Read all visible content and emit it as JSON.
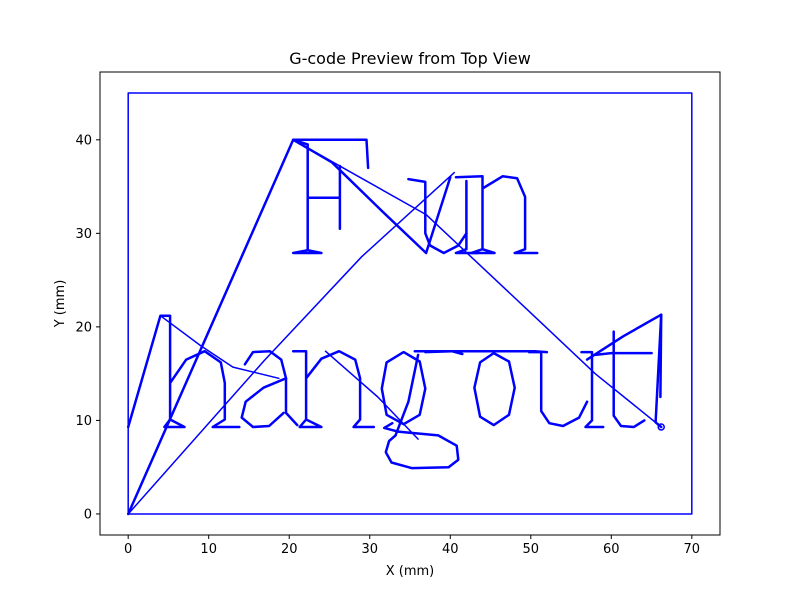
{
  "chart_data": {
    "type": "line",
    "title": "G-code Preview from Top View",
    "xlabel": "X (mm)",
    "ylabel": "Y (mm)",
    "xlim": [
      -3.5,
      73.5
    ],
    "ylim": [
      -2.25,
      47.25
    ],
    "xticks": [
      0,
      10,
      20,
      30,
      40,
      50,
      60,
      70
    ],
    "yticks": [
      0,
      10,
      20,
      30,
      40
    ],
    "grid": false,
    "legend": "none",
    "colors": {
      "path": "#0000ff",
      "axes": "#000000",
      "background": "#ffffff"
    },
    "series": [
      {
        "values": [
          [
            0,
            0
          ],
          [
            0,
            45
          ],
          [
            70,
            45
          ],
          [
            70,
            0
          ],
          [
            0,
            0
          ]
        ]
      },
      {
        "values": [
          [
            0,
            0
          ],
          [
            20.5,
            40
          ],
          [
            29.6,
            40
          ],
          [
            29.8,
            37
          ],
          [
            29.6,
            40
          ],
          [
            20.5,
            40
          ],
          [
            22.3,
            39.5
          ],
          [
            22.3,
            28.2
          ],
          [
            20.5,
            27.9
          ],
          [
            24,
            27.9
          ],
          [
            22.3,
            28.2
          ],
          [
            22.3,
            39.5
          ],
          [
            22.3,
            33.8
          ],
          [
            26.3,
            33.8
          ],
          [
            26.3,
            37.2
          ],
          [
            26.3,
            30.5
          ],
          [
            26.3,
            33.8
          ],
          [
            22.3,
            33.8
          ],
          [
            22.3,
            39.5
          ],
          [
            20.5,
            40
          ]
        ]
      },
      {
        "values": [
          [
            20.5,
            40
          ],
          [
            25.3,
            37.6
          ],
          [
            31.5,
            32.4
          ],
          [
            37,
            27.9
          ],
          [
            40,
            36
          ],
          [
            37,
            27.9
          ]
        ]
      },
      {
        "values": [
          [
            34.8,
            35.8
          ],
          [
            36.9,
            35.5
          ],
          [
            36.9,
            30
          ],
          [
            37.5,
            28.7
          ],
          [
            39.2,
            27.9
          ],
          [
            41,
            28.7
          ],
          [
            42,
            30
          ]
        ]
      },
      {
        "values": [
          [
            42,
            35.6
          ],
          [
            42,
            28.3
          ],
          [
            40.7,
            27.9
          ],
          [
            43.4,
            27.9
          ]
        ]
      },
      {
        "values": [
          [
            40.7,
            36
          ],
          [
            44,
            36.1
          ],
          [
            44,
            28.3
          ],
          [
            42.6,
            27.9
          ],
          [
            45.5,
            27.9
          ],
          [
            44,
            28.3
          ],
          [
            44,
            34.8
          ],
          [
            46.5,
            36.1
          ],
          [
            48.3,
            35.9
          ],
          [
            49.3,
            33.9
          ],
          [
            49.3,
            28.3
          ],
          [
            48,
            27.9
          ],
          [
            50.8,
            27.9
          ]
        ]
      },
      {
        "values": [
          [
            20.5,
            40
          ],
          [
            37,
            32
          ],
          [
            50,
            21.5
          ],
          [
            58,
            15
          ],
          [
            66.2,
            9.3
          ]
        ]
      },
      {
        "values": [
          [
            0,
            0
          ],
          [
            17,
            16.5
          ],
          [
            29,
            27.5
          ],
          [
            40.5,
            36.5
          ]
        ]
      },
      {
        "values": [
          [
            0,
            9.3
          ],
          [
            4,
            21.2
          ],
          [
            5.2,
            21.2
          ],
          [
            5.2,
            10.1
          ],
          [
            4.5,
            9.3
          ],
          [
            7,
            9.3
          ],
          [
            5.2,
            10.1
          ],
          [
            5.2,
            14
          ],
          [
            7.2,
            16.5
          ],
          [
            9.5,
            17.4
          ],
          [
            11.5,
            16.2
          ],
          [
            12,
            14
          ],
          [
            12,
            10.1
          ],
          [
            10.5,
            9.3
          ],
          [
            13.8,
            9.3
          ]
        ]
      },
      {
        "values": [
          [
            4,
            21.2
          ],
          [
            9,
            18
          ],
          [
            13,
            15.7
          ],
          [
            18.7,
            14.5
          ]
        ]
      },
      {
        "values": [
          [
            14.5,
            16
          ],
          [
            15.5,
            17.3
          ],
          [
            17.6,
            17.4
          ],
          [
            19,
            16.5
          ],
          [
            19.6,
            14.5
          ],
          [
            19.6,
            10.8
          ],
          [
            21,
            9.5
          ]
        ]
      },
      {
        "values": [
          [
            19.6,
            14.5
          ],
          [
            16.8,
            13.5
          ],
          [
            14.6,
            12
          ],
          [
            14.1,
            10.3
          ],
          [
            15.5,
            9.3
          ],
          [
            17.5,
            9.4
          ],
          [
            19.3,
            10.8
          ]
        ]
      },
      {
        "values": [
          [
            20.5,
            17.4
          ],
          [
            22.1,
            17.4
          ],
          [
            22.1,
            10.1
          ],
          [
            21.3,
            9.3
          ],
          [
            24,
            9.3
          ],
          [
            22.1,
            10.1
          ],
          [
            22.1,
            14.5
          ],
          [
            24,
            16.6
          ],
          [
            26.2,
            17.4
          ],
          [
            28.2,
            16.5
          ],
          [
            28.8,
            14.5
          ],
          [
            28.8,
            10.1
          ],
          [
            28,
            9.3
          ],
          [
            30.5,
            9.3
          ]
        ]
      },
      {
        "values": [
          [
            24.5,
            17.4
          ],
          [
            31,
            12.5
          ],
          [
            36,
            8
          ]
        ]
      },
      {
        "values": [
          [
            31.5,
            13.4
          ],
          [
            32.1,
            16.2
          ],
          [
            34.2,
            17.3
          ],
          [
            36.2,
            16.3
          ],
          [
            36.9,
            13.4
          ],
          [
            36.2,
            10.6
          ],
          [
            34.2,
            9.6
          ],
          [
            32.1,
            10.6
          ],
          [
            31.5,
            13.4
          ]
        ]
      },
      {
        "values": [
          [
            36.9,
            17.3
          ],
          [
            40.2,
            17.4
          ],
          [
            41.5,
            17.1
          ]
        ]
      },
      {
        "values": [
          [
            32.8,
            9.7
          ],
          [
            31.8,
            9.2
          ],
          [
            33.5,
            8.8
          ],
          [
            38.5,
            8.4
          ],
          [
            40.8,
            7.3
          ],
          [
            41,
            5.8
          ],
          [
            39.8,
            5
          ],
          [
            35.2,
            4.9
          ],
          [
            32.7,
            5.5
          ],
          [
            32,
            6.6
          ],
          [
            32.4,
            7.8
          ],
          [
            33.2,
            8.4
          ]
        ]
      },
      {
        "values": [
          [
            36,
            17
          ],
          [
            34.8,
            12
          ],
          [
            33.2,
            8.4
          ]
        ]
      },
      {
        "values": [
          [
            43,
            13.5
          ],
          [
            43.7,
            16.2
          ],
          [
            45.4,
            17.2
          ],
          [
            47.3,
            16.3
          ],
          [
            48,
            13.5
          ],
          [
            47.3,
            10.6
          ],
          [
            45.4,
            9.5
          ],
          [
            43.7,
            10.4
          ],
          [
            43,
            13.5
          ]
        ]
      },
      {
        "values": [
          [
            35.6,
            17.4
          ],
          [
            50.5,
            17.4
          ],
          [
            52,
            17.3
          ]
        ]
      },
      {
        "values": [
          [
            49.8,
            17.3
          ],
          [
            51.3,
            17.3
          ],
          [
            51.3,
            11
          ],
          [
            52.3,
            9.7
          ],
          [
            54,
            9.4
          ],
          [
            56,
            10.3
          ],
          [
            57,
            12
          ]
        ]
      },
      {
        "values": [
          [
            56.3,
            17.3
          ],
          [
            57.6,
            17.3
          ],
          [
            57.6,
            10
          ],
          [
            56.8,
            9.3
          ],
          [
            59,
            9.3
          ]
        ]
      },
      {
        "values": [
          [
            58,
            17
          ],
          [
            60,
            17.2
          ],
          [
            65,
            17.2
          ]
        ]
      },
      {
        "values": [
          [
            60.3,
            19.5
          ],
          [
            60.3,
            10.5
          ],
          [
            61.2,
            9.4
          ],
          [
            62.8,
            9.3
          ],
          [
            64.1,
            10
          ]
        ]
      },
      {
        "values": [
          [
            57,
            16.5
          ],
          [
            61.5,
            19
          ],
          [
            66.2,
            21.3
          ],
          [
            66.1,
            12.5
          ],
          [
            66.2,
            21.3
          ]
        ]
      },
      {
        "values": [
          [
            66.2,
            21.3
          ],
          [
            65.5,
            9.8
          ],
          [
            66.2,
            9.3
          ]
        ]
      }
    ]
  }
}
